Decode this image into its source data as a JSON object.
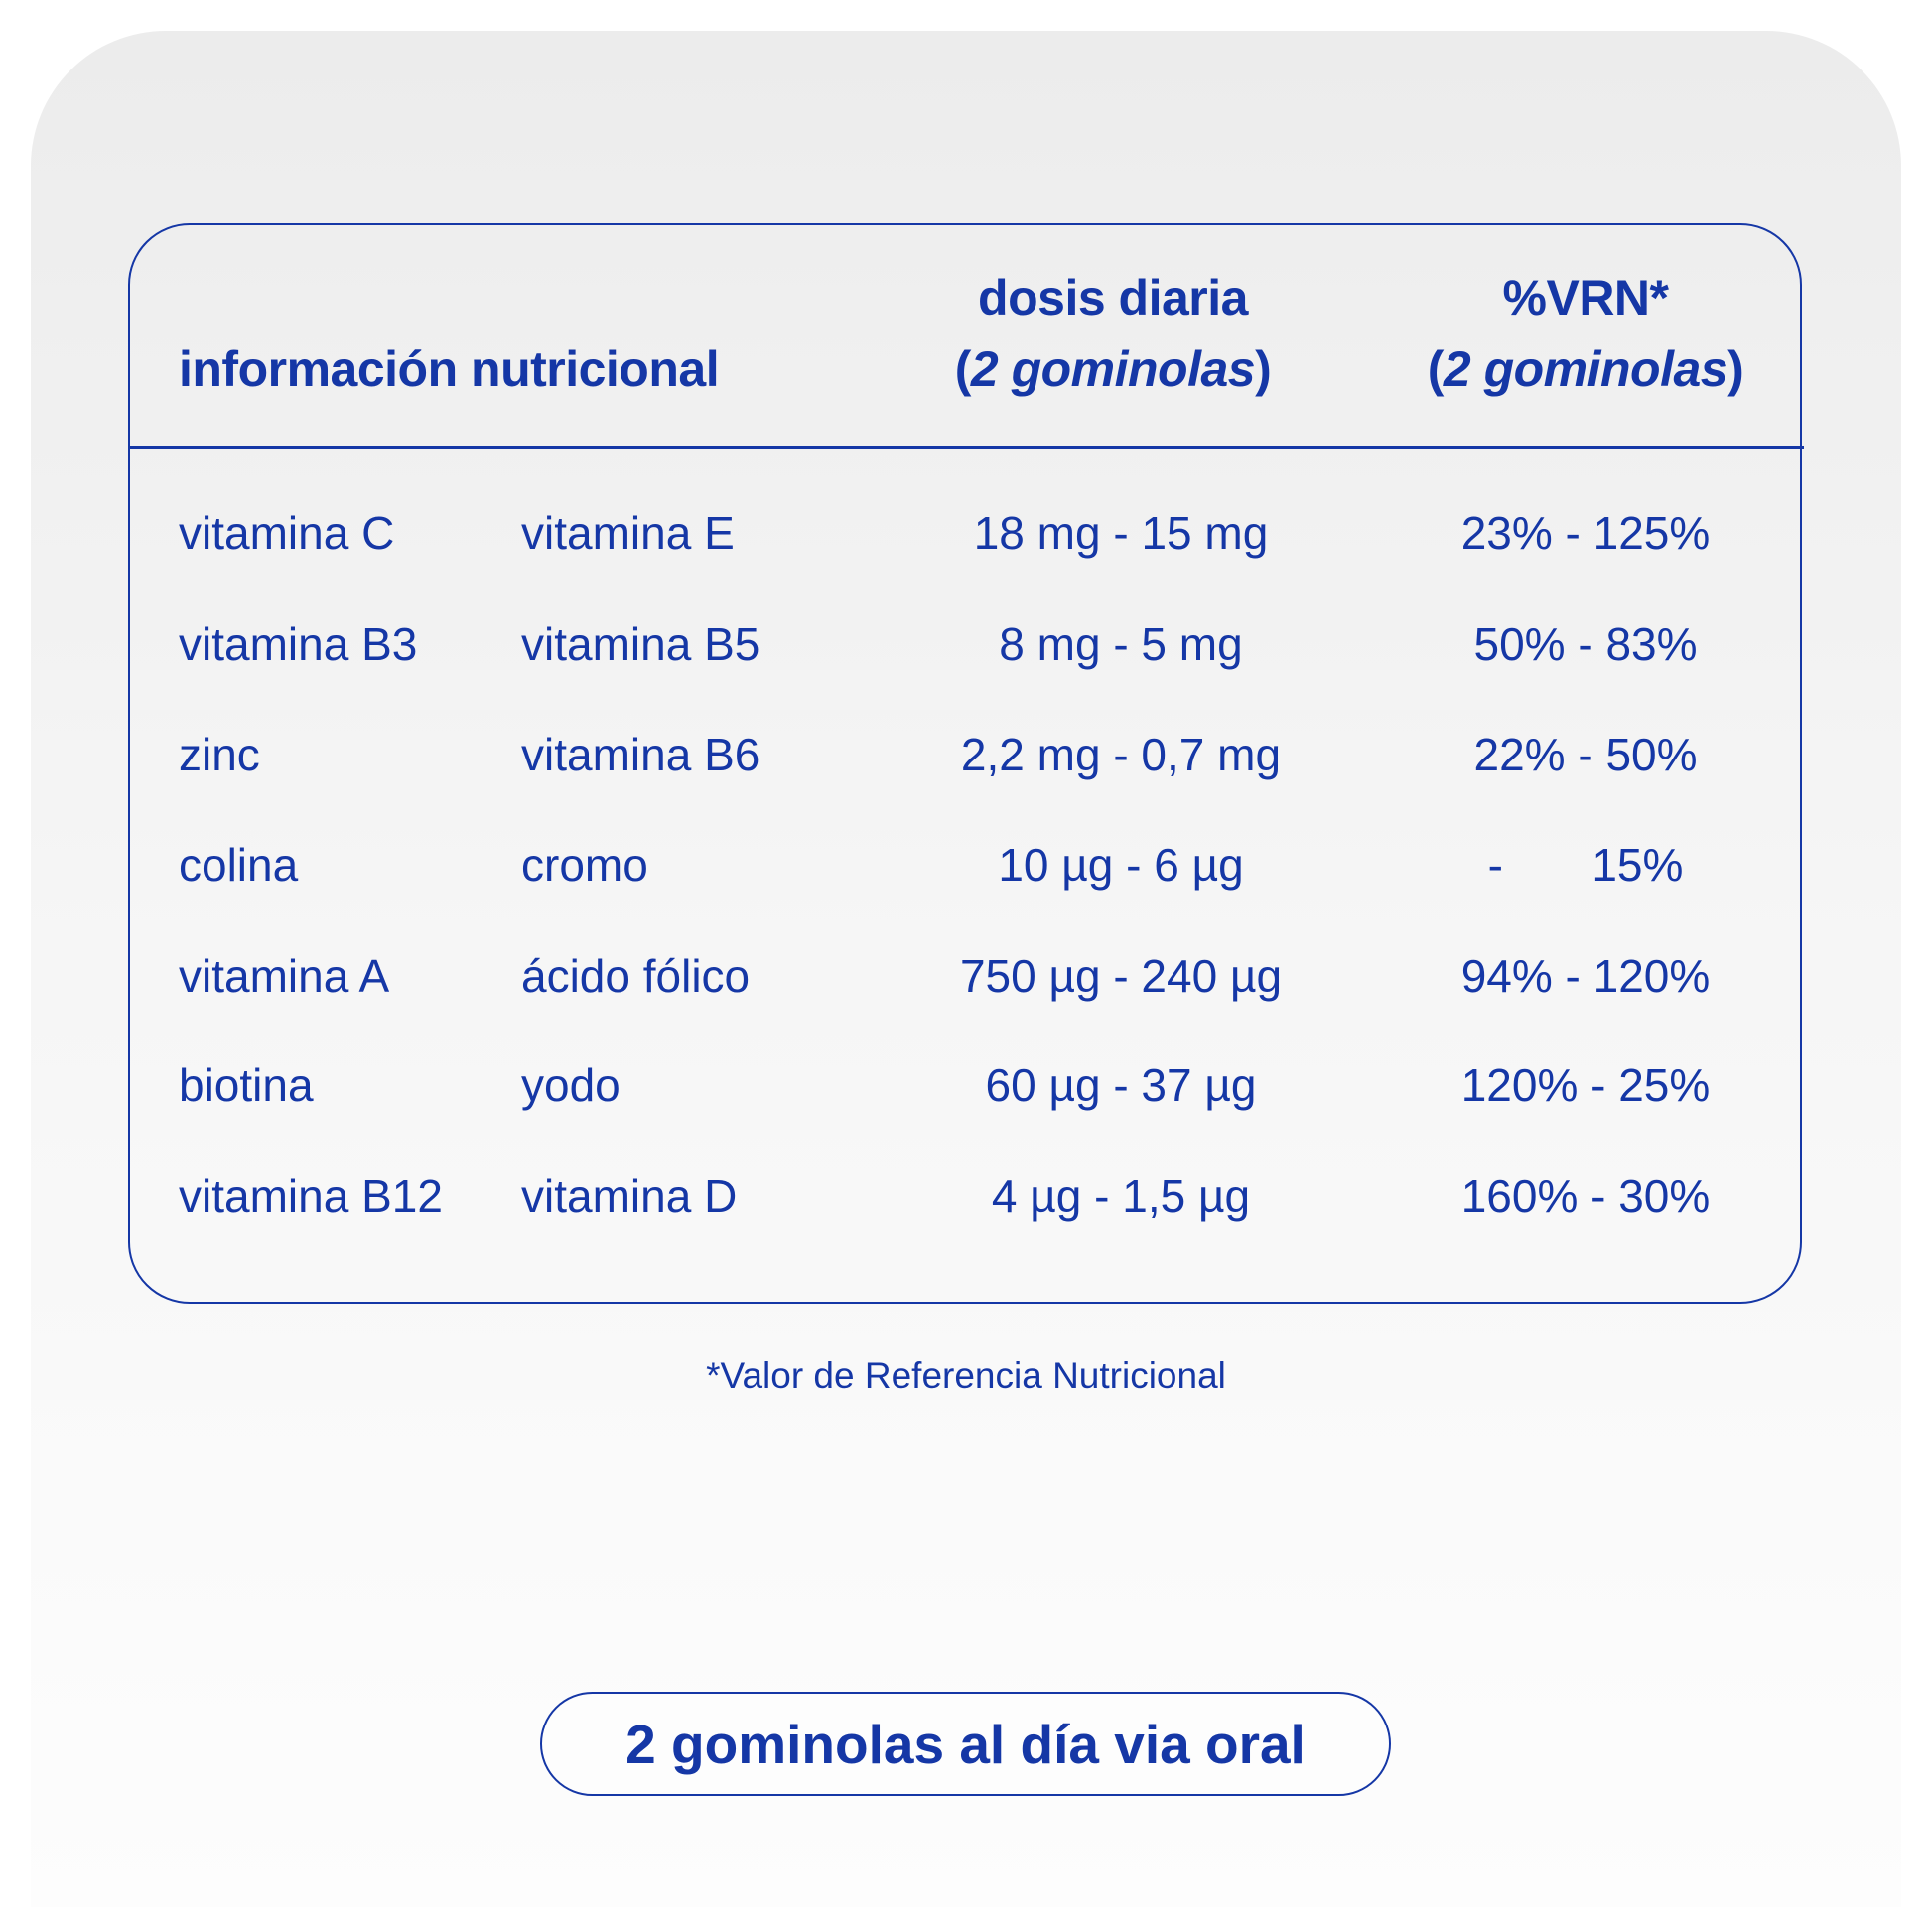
{
  "header": {
    "col1": "información nutricional",
    "col2_line1": "dosis diaria",
    "col2_line2": "2 gominolas",
    "col3_line1": "%VRN*",
    "col3_line2": "2 gominolas",
    "paren_open": "(",
    "paren_close": ")"
  },
  "rows": [
    {
      "a": "vitamina C",
      "b": "vitamina E",
      "dose": "18 mg - 15 mg",
      "vrn": "23% - 125%"
    },
    {
      "a": "vitamina B3",
      "b": "vitamina B5",
      "dose": "8 mg - 5 mg",
      "vrn": "50% - 83%"
    },
    {
      "a": "zinc",
      "b": "vitamina B6",
      "dose": "2,2 mg - 0,7 mg",
      "vrn": "22% - 50%"
    },
    {
      "a": "colina",
      "b": "cromo",
      "dose": "10 µg - 6 µg",
      "vrn": "-       15%"
    },
    {
      "a": "vitamina A",
      "b": "ácido fólico",
      "dose": "750 µg - 240 µg",
      "vrn": "94% - 120%"
    },
    {
      "a": "biotina",
      "b": "yodo",
      "dose": "60 µg - 37 µg",
      "vrn": "120% - 25%"
    },
    {
      "a": "vitamina B12",
      "b": "vitamina D",
      "dose": "4 µg - 1,5 µg",
      "vrn": "160% - 30%"
    }
  ],
  "footnote": "*Valor de Referencia Nutricional",
  "dosage_badge": "2 gominolas al día via oral",
  "colors": {
    "accent": "#1537a6",
    "background_top": "#ececec",
    "background_bottom": "#fdfdfd"
  }
}
